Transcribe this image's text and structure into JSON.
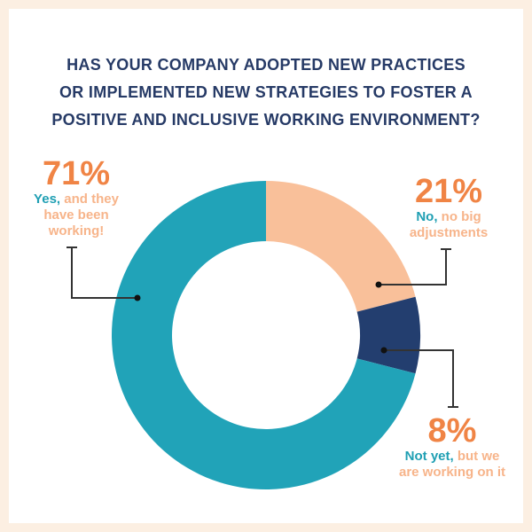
{
  "title_lines": [
    "HAS YOUR COMPANY ADOPTED NEW PRACTICES",
    "OR IMPLEMENTED NEW STRATEGIES TO FOSTER A",
    "POSITIVE AND INCLUSIVE WORKING ENVIRONMENT?"
  ],
  "colors": {
    "background": "#fcefe2",
    "title": "#263a66",
    "percent": "#f08445",
    "key": "#1f9fb3",
    "rest": "#f7b48a"
  },
  "chart_data": {
    "type": "pie",
    "donut": true,
    "title": "HAS YOUR COMPANY ADOPTED NEW PRACTICES OR IMPLEMENTED NEW STRATEGIES TO FOSTER A POSITIVE AND INCLUSIVE WORKING ENVIRONMENT?",
    "slices": [
      {
        "name": "No, no big adjustments",
        "value": 21,
        "color": "#f9c09a",
        "pct_label": "21%",
        "key": "No,",
        "rest_lines": [
          "no big",
          "adjustments"
        ]
      },
      {
        "name": "Not yet, but we are working on it",
        "value": 8,
        "color": "#233e6f",
        "pct_label": "8%",
        "key": "Not yet,",
        "rest_lines": [
          "but we",
          "are working on it"
        ]
      },
      {
        "name": "Yes, and they have been working!",
        "value": 71,
        "color": "#21a3b8",
        "pct_label": "71%",
        "key": "Yes,",
        "rest_lines": [
          "and they",
          "have been",
          "working!"
        ]
      }
    ]
  }
}
